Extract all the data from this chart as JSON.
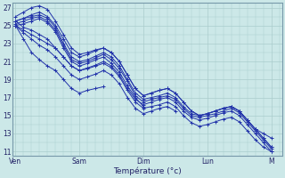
{
  "title": "Température (°c)",
  "x_labels": [
    "Ven",
    "Sam",
    "Dim",
    "Lun",
    "M"
  ],
  "x_ticks": [
    0,
    24,
    48,
    72,
    96
  ],
  "ylim": [
    10.5,
    27.5
  ],
  "xlim": [
    -1,
    100
  ],
  "bg_color": "#cce8e8",
  "grid_color": "#aacccc",
  "line_color": "#2233aa",
  "series": [
    {
      "x": [
        0,
        3,
        6,
        9,
        12,
        15,
        18,
        21,
        24,
        27,
        30,
        33,
        36,
        39,
        42,
        45,
        48,
        51,
        54,
        57,
        60,
        63,
        66,
        69,
        72,
        75,
        78,
        81,
        84,
        87,
        90,
        93,
        96
      ],
      "y": [
        25.5,
        25.8,
        26.2,
        26.5,
        26.0,
        25.0,
        23.5,
        22.0,
        21.5,
        21.8,
        22.2,
        22.5,
        22.0,
        21.0,
        19.5,
        18.0,
        17.2,
        17.5,
        17.8,
        18.0,
        17.5,
        16.5,
        15.5,
        15.0,
        15.2,
        15.5,
        15.8,
        16.0,
        15.5,
        14.5,
        13.5,
        12.5,
        11.5
      ]
    },
    {
      "x": [
        0,
        3,
        6,
        9,
        12,
        15,
        18,
        21,
        24,
        27,
        30,
        33,
        36,
        39,
        42,
        45,
        48,
        51,
        54,
        57,
        60,
        63,
        66,
        69,
        72,
        75,
        78,
        81,
        84,
        87,
        90,
        93,
        96
      ],
      "y": [
        25.5,
        25.8,
        26.0,
        26.2,
        25.8,
        24.8,
        23.0,
        21.5,
        21.0,
        21.2,
        21.6,
        22.0,
        21.5,
        20.5,
        19.0,
        17.5,
        16.8,
        17.0,
        17.2,
        17.5,
        17.0,
        16.0,
        15.2,
        15.0,
        15.2,
        15.5,
        15.8,
        16.0,
        15.5,
        14.5,
        13.5,
        12.5,
        11.5
      ]
    },
    {
      "x": [
        0,
        3,
        6,
        9,
        12,
        15,
        18,
        21,
        24,
        27,
        30,
        33,
        36,
        39,
        42,
        45,
        48,
        51,
        54,
        57,
        60,
        63,
        66,
        69,
        72,
        75,
        78,
        81,
        84,
        87,
        90,
        93,
        96
      ],
      "y": [
        25.2,
        25.5,
        25.8,
        26.0,
        25.5,
        24.5,
        22.8,
        21.2,
        20.8,
        21.0,
        21.4,
        21.8,
        21.2,
        20.2,
        18.8,
        17.2,
        16.5,
        16.8,
        17.0,
        17.2,
        16.8,
        15.8,
        15.0,
        14.8,
        15.0,
        15.2,
        15.5,
        15.8,
        15.3,
        14.3,
        13.3,
        12.3,
        11.3
      ]
    },
    {
      "x": [
        0,
        3,
        6,
        9,
        12,
        15,
        18,
        21,
        24,
        27,
        30,
        33,
        36,
        39,
        42,
        45,
        48
      ],
      "y": [
        25.0,
        25.2,
        25.5,
        25.8,
        25.3,
        24.3,
        22.5,
        21.0,
        20.5,
        20.8,
        21.2,
        21.5,
        20.8,
        19.8,
        18.3,
        17.0,
        16.0
      ]
    },
    {
      "x": [
        0,
        3,
        6,
        9,
        12,
        15,
        18,
        21,
        24,
        27,
        30,
        33,
        36,
        39,
        42,
        45,
        48,
        51,
        54,
        57,
        60,
        63,
        66,
        69,
        72,
        75,
        78,
        81,
        84,
        87,
        90,
        93,
        96
      ],
      "y": [
        25.0,
        24.5,
        24.0,
        23.5,
        23.0,
        22.5,
        21.5,
        20.5,
        20.0,
        20.3,
        20.6,
        21.0,
        20.5,
        19.5,
        18.0,
        16.8,
        16.2,
        16.5,
        16.8,
        17.0,
        16.5,
        15.5,
        14.8,
        14.5,
        14.7,
        15.0,
        15.3,
        15.5,
        15.0,
        14.0,
        13.0,
        12.0,
        11.0
      ]
    },
    {
      "x": [
        0,
        3,
        6,
        9,
        12,
        15,
        18,
        21,
        24,
        27,
        30,
        33,
        36,
        39,
        42,
        45,
        48,
        51,
        54,
        57,
        60
      ],
      "y": [
        25.0,
        24.2,
        23.5,
        22.8,
        22.3,
        21.5,
        20.5,
        19.5,
        19.0,
        19.3,
        19.6,
        20.0,
        19.5,
        18.5,
        17.0,
        15.8,
        15.2,
        15.5,
        15.8,
        16.0,
        15.5
      ]
    },
    {
      "x": [
        0,
        3,
        6,
        9,
        12,
        15,
        18,
        21,
        24,
        27,
        30,
        33
      ],
      "y": [
        25.0,
        23.5,
        22.0,
        21.2,
        20.5,
        20.0,
        19.0,
        18.0,
        17.5,
        17.8,
        18.0,
        18.2
      ]
    },
    {
      "x": [
        0,
        3,
        6,
        9,
        12,
        15,
        18,
        21,
        24,
        27,
        30,
        33,
        36,
        39,
        42,
        45,
        48,
        51,
        54,
        57,
        60,
        63,
        66,
        69,
        72,
        75,
        78,
        81,
        84,
        87,
        90,
        93,
        96
      ],
      "y": [
        26.0,
        26.5,
        27.0,
        27.2,
        26.8,
        25.5,
        24.0,
        22.5,
        21.8,
        22.0,
        22.3,
        22.5,
        22.0,
        21.0,
        19.5,
        18.0,
        17.2,
        17.5,
        17.8,
        18.0,
        17.5,
        16.5,
        15.5,
        15.0,
        15.2,
        15.5,
        15.8,
        16.0,
        15.5,
        14.5,
        13.5,
        13.0,
        12.5
      ]
    },
    {
      "x": [
        0,
        3,
        6,
        9,
        12,
        15,
        18,
        21,
        24,
        27,
        30,
        33,
        36,
        39,
        42,
        45,
        48,
        51,
        54,
        57,
        60,
        63,
        66,
        69,
        72,
        75,
        78,
        81,
        84,
        87,
        90,
        93,
        96
      ],
      "y": [
        25.5,
        24.8,
        24.5,
        24.0,
        23.5,
        22.5,
        21.5,
        20.5,
        20.0,
        20.2,
        20.5,
        20.8,
        20.3,
        19.3,
        17.8,
        16.5,
        15.8,
        16.0,
        16.2,
        16.5,
        16.0,
        15.0,
        14.2,
        13.8,
        14.0,
        14.3,
        14.6,
        14.8,
        14.3,
        13.3,
        12.3,
        11.5,
        11.0
      ]
    }
  ]
}
